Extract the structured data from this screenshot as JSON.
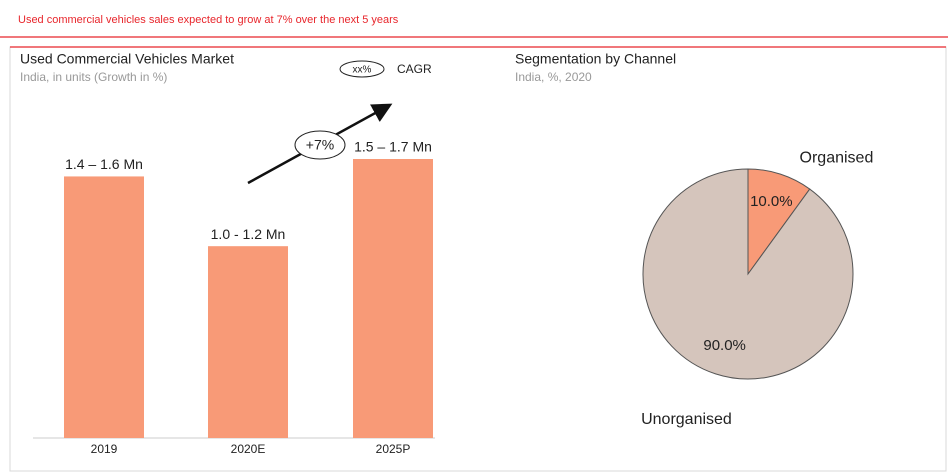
{
  "header": {
    "title": "Used commercial vehicles sales expected to grow at 7% over the next 5 years"
  },
  "chart_data": [
    {
      "type": "bar",
      "title": "Used Commercial Vehicles Market",
      "subtitle": "India, in units (Growth in %)",
      "categories": [
        "2019",
        "2020E",
        "2025P"
      ],
      "values": [
        1.5,
        1.1,
        1.6
      ],
      "value_labels": [
        "1.4 – 1.6 Mn",
        "1.0 -  1.2 Mn",
        "1.5 – 1.7 Mn"
      ],
      "color": "#f89a77",
      "annotation": "+7%",
      "legend": {
        "symbol": "xx%",
        "label": "CAGR"
      }
    },
    {
      "type": "pie",
      "title": "Segmentation by Channel",
      "subtitle": "India, %, 2020",
      "categories": [
        "Organised",
        "Unorganised"
      ],
      "values": [
        10,
        90
      ],
      "value_labels": [
        "10.0%",
        "90.0%"
      ],
      "colors": [
        "#f89a77",
        "#d5c5bc"
      ]
    }
  ]
}
